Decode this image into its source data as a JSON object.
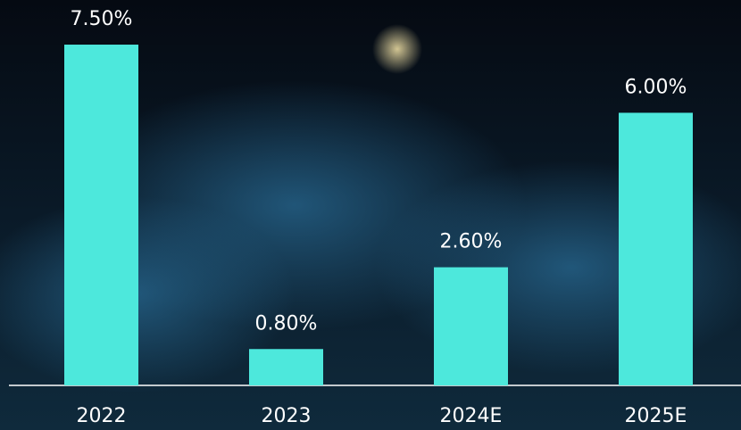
{
  "chart_data": {
    "type": "bar",
    "categories": [
      "2022",
      "2023",
      "2024E",
      "2025E"
    ],
    "values": [
      7.5,
      0.8,
      2.6,
      6.0
    ],
    "value_labels": [
      "7.50%",
      "0.80%",
      "2.60%",
      "6.00%"
    ],
    "color": "#4de8dc"
  }
}
